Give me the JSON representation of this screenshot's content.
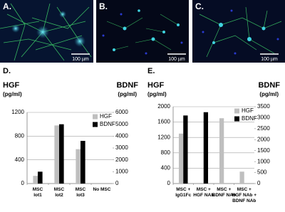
{
  "images": [
    {
      "label": "A.",
      "scale": "100 µm"
    },
    {
      "label": "B.",
      "scale": "100 µm"
    },
    {
      "label": "C.",
      "scale": "100 µm"
    }
  ],
  "chart_data": [
    {
      "type": "bar",
      "panel": "D.",
      "y_label": "HGF",
      "y_label_unit": "(pg/ml)",
      "y2_label": "BDNF",
      "y2_label_unit": "(pg/ml)",
      "categories": [
        "MSC\nlot1",
        "MSC\nlot2",
        "MSC\nlot3",
        "No MSC"
      ],
      "series": [
        {
          "name": "HGF",
          "color": "#bfbfbf",
          "values": [
            130,
            980,
            580,
            0
          ]
        },
        {
          "name": "BDNF",
          "color": "#000000",
          "axis": "y2",
          "values": [
            1000,
            5000,
            3600,
            0
          ]
        }
      ],
      "ylim": [
        0,
        1200
      ],
      "yticks": [
        0,
        400,
        800,
        1200
      ],
      "y2lim": [
        0,
        6000
      ],
      "y2ticks": [
        0,
        1000,
        2000,
        3000,
        4000,
        5000,
        6000
      ],
      "grid": true,
      "legend": "top-right"
    },
    {
      "type": "bar",
      "panel": "E.",
      "y_label": "HGF",
      "y_label_unit": "(pg/ml)",
      "y2_label": "BDNF",
      "y2_label_unit": "(pg/ml)",
      "categories": [
        "MSC +\nIgG1Fc",
        "MSC +\nHGF NAb",
        "MSC +\nBDNF NAb",
        "MSC +\nHGF NAb +\nBDNF NAb"
      ],
      "series": [
        {
          "name": "HGF",
          "color": "#bfbfbf",
          "values": [
            1300,
            0,
            1700,
            310
          ]
        },
        {
          "name": "BDNF",
          "color": "#000000",
          "axis": "y2",
          "values": [
            3100,
            3250,
            0,
            0
          ]
        }
      ],
      "ylim": [
        0,
        2000
      ],
      "yticks": [
        0,
        400,
        800,
        1200,
        1600,
        2000
      ],
      "y2lim": [
        0,
        3500
      ],
      "y2ticks": [
        0,
        500,
        1000,
        1500,
        2000,
        2500,
        3000,
        3500
      ],
      "grid": true,
      "legend": "top-right"
    }
  ]
}
